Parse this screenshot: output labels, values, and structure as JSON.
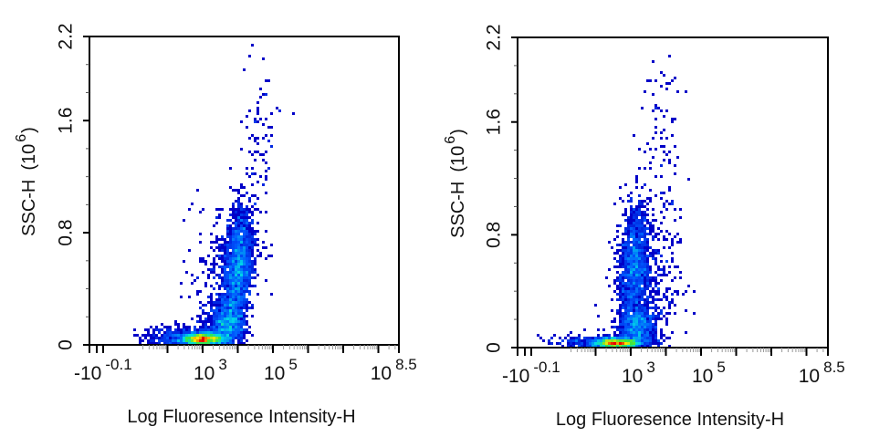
{
  "chart_data": [
    {
      "type": "scatter",
      "subtype": "density-dot-plot",
      "title": "",
      "xlabel": "Log Fluoresence Intensity-H",
      "ylabel": "SSC-H",
      "ylabel_unit_base": "(10",
      "ylabel_unit_exp": "6",
      "ylabel_unit_close": ")",
      "x_scale": "log10",
      "xlim": [
        -0.22,
        8.5
      ],
      "ylim": [
        0,
        2.2
      ],
      "x_tick_labels": [
        {
          "base": "-10",
          "exp": "-0.1",
          "value": -0.1
        },
        {
          "base": "10",
          "exp": "3",
          "value": 3
        },
        {
          "base": "10",
          "exp": "5",
          "value": 5
        },
        {
          "base": "10",
          "exp": "8.5",
          "value": 8.5
        }
      ],
      "y_tick_labels": [
        "0",
        "0.8",
        "1.6",
        "2.2"
      ],
      "y_tick_values": [
        0,
        0.8,
        1.6,
        2.2
      ],
      "populations": [
        {
          "x_log_mean": 3.0,
          "x_sd": 0.3,
          "y_mean": 0.04,
          "y_sd": 0.025,
          "n": 1500,
          "tilt": 0
        },
        {
          "x_log_mean": 2.3,
          "x_sd": 0.5,
          "y_mean": 0.05,
          "y_sd": 0.04,
          "n": 300,
          "tilt": 0
        },
        {
          "x_log_mean": 3.7,
          "x_sd": 0.25,
          "y_mean": 0.15,
          "y_sd": 0.08,
          "n": 800,
          "tilt": 0
        },
        {
          "x_log_mean": 4.0,
          "x_sd": 0.2,
          "y_mean": 0.55,
          "y_sd": 0.22,
          "n": 1600,
          "tilt": 0.3
        },
        {
          "x_log_mean": 3.6,
          "x_sd": 0.45,
          "y_mean": 0.4,
          "y_sd": 0.3,
          "n": 350,
          "tilt": 0.5
        },
        {
          "x_log_mean": 4.6,
          "x_sd": 0.3,
          "y_mean": 1.4,
          "y_sd": 0.35,
          "n": 90,
          "tilt": 0
        }
      ]
    },
    {
      "type": "scatter",
      "subtype": "density-dot-plot",
      "title": "",
      "xlabel": "Log Fluoresence Intensity-H",
      "ylabel": "SSC-H",
      "ylabel_unit_base": "(10",
      "ylabel_unit_exp": "6",
      "ylabel_unit_close": ")",
      "x_scale": "log10",
      "xlim": [
        -0.22,
        8.5
      ],
      "ylim": [
        0,
        2.2
      ],
      "x_tick_labels": [
        {
          "base": "-10",
          "exp": "-0.1",
          "value": -0.1
        },
        {
          "base": "10",
          "exp": "3",
          "value": 3
        },
        {
          "base": "10",
          "exp": "5",
          "value": 5
        },
        {
          "base": "10",
          "exp": "8.5",
          "value": 8.5
        }
      ],
      "y_tick_labels": [
        "0",
        "0.8",
        "1.6",
        "2.2"
      ],
      "y_tick_values": [
        0,
        0.8,
        1.6,
        2.2
      ],
      "populations": [
        {
          "x_log_mean": 2.6,
          "x_sd": 0.35,
          "y_mean": 0.03,
          "y_sd": 0.02,
          "n": 1500,
          "tilt": 0
        },
        {
          "x_log_mean": 1.8,
          "x_sd": 0.6,
          "y_mean": 0.03,
          "y_sd": 0.03,
          "n": 200,
          "tilt": 0
        },
        {
          "x_log_mean": 3.2,
          "x_sd": 0.25,
          "y_mean": 0.15,
          "y_sd": 0.07,
          "n": 700,
          "tilt": 0
        },
        {
          "x_log_mean": 3.1,
          "x_sd": 0.2,
          "y_mean": 0.6,
          "y_sd": 0.22,
          "n": 1200,
          "tilt": 0.2
        },
        {
          "x_log_mean": 3.4,
          "x_sd": 0.45,
          "y_mean": 0.4,
          "y_sd": 0.3,
          "n": 500,
          "tilt": 0.4
        },
        {
          "x_log_mean": 3.9,
          "x_sd": 0.3,
          "y_mean": 1.4,
          "y_sd": 0.35,
          "n": 90,
          "tilt": 0
        }
      ]
    }
  ]
}
